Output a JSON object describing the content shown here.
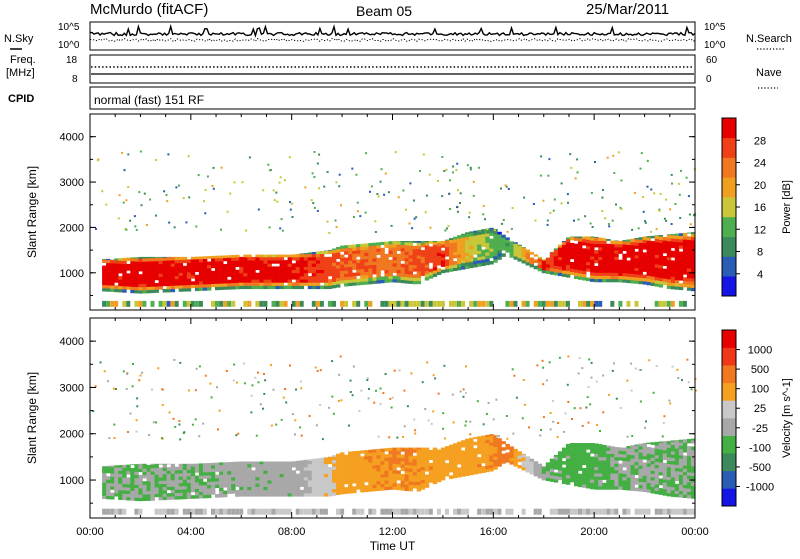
{
  "header": {
    "station": "McMurdo (fitACF)",
    "beam": "Beam 05",
    "date": "25/Mar/2011"
  },
  "noise_panel": {
    "left_label": "N.Sky",
    "right_label": "N.Search",
    "left_ticks": [
      "10^5",
      "10^0"
    ],
    "right_ticks": [
      "10^5",
      "10^0"
    ]
  },
  "freq_panel": {
    "left_label_line1": "Freq.",
    "left_label_line2": "[MHz]",
    "right_label": "Nave",
    "left_ticks": [
      "18",
      "8"
    ],
    "right_ticks": [
      "60",
      "0"
    ]
  },
  "cpid_panel": {
    "label": "CPID",
    "mode_text": "normal (fast) 151 RF"
  },
  "x_axis": {
    "title": "Time UT",
    "tick_labels": [
      "00:00",
      "04:00",
      "08:00",
      "12:00",
      "16:00",
      "20:00",
      "00:00"
    ]
  },
  "colors": {
    "power_scale": [
      "#1414e6",
      "#2a5bb5",
      "#3c8a5a",
      "#4fae4f",
      "#c9c63a",
      "#f0a020",
      "#f07820",
      "#f04018",
      "#e60000"
    ],
    "velocity_scale": [
      "#e60000",
      "#f03818",
      "#f07820",
      "#f5a020",
      "#c8c8c8",
      "#a8a8a8",
      "#44b044",
      "#3c8a5a",
      "#2a5bb5",
      "#1414e6"
    ]
  },
  "chart_data": [
    {
      "type": "heatmap",
      "title": "",
      "xlabel": "Time UT",
      "ylabel": "Slant Range [km]",
      "xlim": [
        "00:00",
        "00:00"
      ],
      "ylim": [
        180,
        4500
      ],
      "y_tick_labels": [
        "1000",
        "2000",
        "3000",
        "4000"
      ],
      "colorbar": {
        "label": "Power [dB]",
        "tick_labels": [
          "4",
          "8",
          "12",
          "16",
          "20",
          "24",
          "28"
        ],
        "range": [
          0,
          30
        ]
      },
      "echo_band": {
        "time_h": [
          0.5,
          2,
          4,
          6,
          8,
          9.5,
          10,
          12,
          13,
          14,
          15,
          16,
          16.5,
          18,
          19,
          20,
          21,
          22,
          23,
          24
        ],
        "lower_km": [
          600,
          550,
          600,
          650,
          650,
          650,
          700,
          800,
          750,
          1000,
          1100,
          1200,
          1400,
          1000,
          900,
          800,
          800,
          750,
          650,
          600
        ],
        "upper_km": [
          1300,
          1350,
          1350,
          1400,
          1400,
          1500,
          1600,
          1700,
          1700,
          1700,
          1900,
          2000,
          1800,
          1300,
          1800,
          1800,
          1700,
          1800,
          1850,
          1900
        ],
        "core_power_db": [
          28,
          28,
          28,
          28,
          28,
          25,
          24,
          22,
          24,
          26,
          16,
          12,
          10,
          26,
          28,
          28,
          28,
          28,
          28,
          28
        ]
      }
    },
    {
      "type": "heatmap",
      "title": "",
      "xlabel": "Time UT",
      "ylabel": "Slant Range [km]",
      "xlim": [
        "00:00",
        "00:00"
      ],
      "ylim": [
        180,
        4500
      ],
      "y_tick_labels": [
        "1000",
        "2000",
        "3000",
        "4000"
      ],
      "colorbar": {
        "label": "Velocity [m s^-1]",
        "tick_labels": [
          "1000",
          "500",
          "100",
          "25",
          "-25",
          "-100",
          "-500",
          "-1000"
        ],
        "range": [
          -1000,
          1000
        ]
      },
      "echo_band": {
        "time_h": [
          0.5,
          2,
          4,
          6,
          8,
          9.5,
          10,
          12,
          13,
          14,
          15,
          16,
          16.5,
          18,
          19,
          20,
          21,
          22,
          23,
          24
        ],
        "lower_km": [
          600,
          550,
          600,
          650,
          650,
          650,
          700,
          800,
          750,
          1000,
          1100,
          1200,
          1400,
          1000,
          900,
          800,
          800,
          750,
          650,
          600
        ],
        "upper_km": [
          1300,
          1350,
          1350,
          1400,
          1400,
          1500,
          1600,
          1700,
          1700,
          1700,
          1900,
          2000,
          1800,
          1300,
          1800,
          1800,
          1700,
          1800,
          1850,
          1900
        ],
        "core_velocity_ms": [
          -200,
          -200,
          -200,
          -150,
          -150,
          200,
          300,
          400,
          400,
          300,
          300,
          400,
          500,
          -200,
          -250,
          -250,
          -200,
          -200,
          -200,
          -200
        ]
      }
    }
  ]
}
